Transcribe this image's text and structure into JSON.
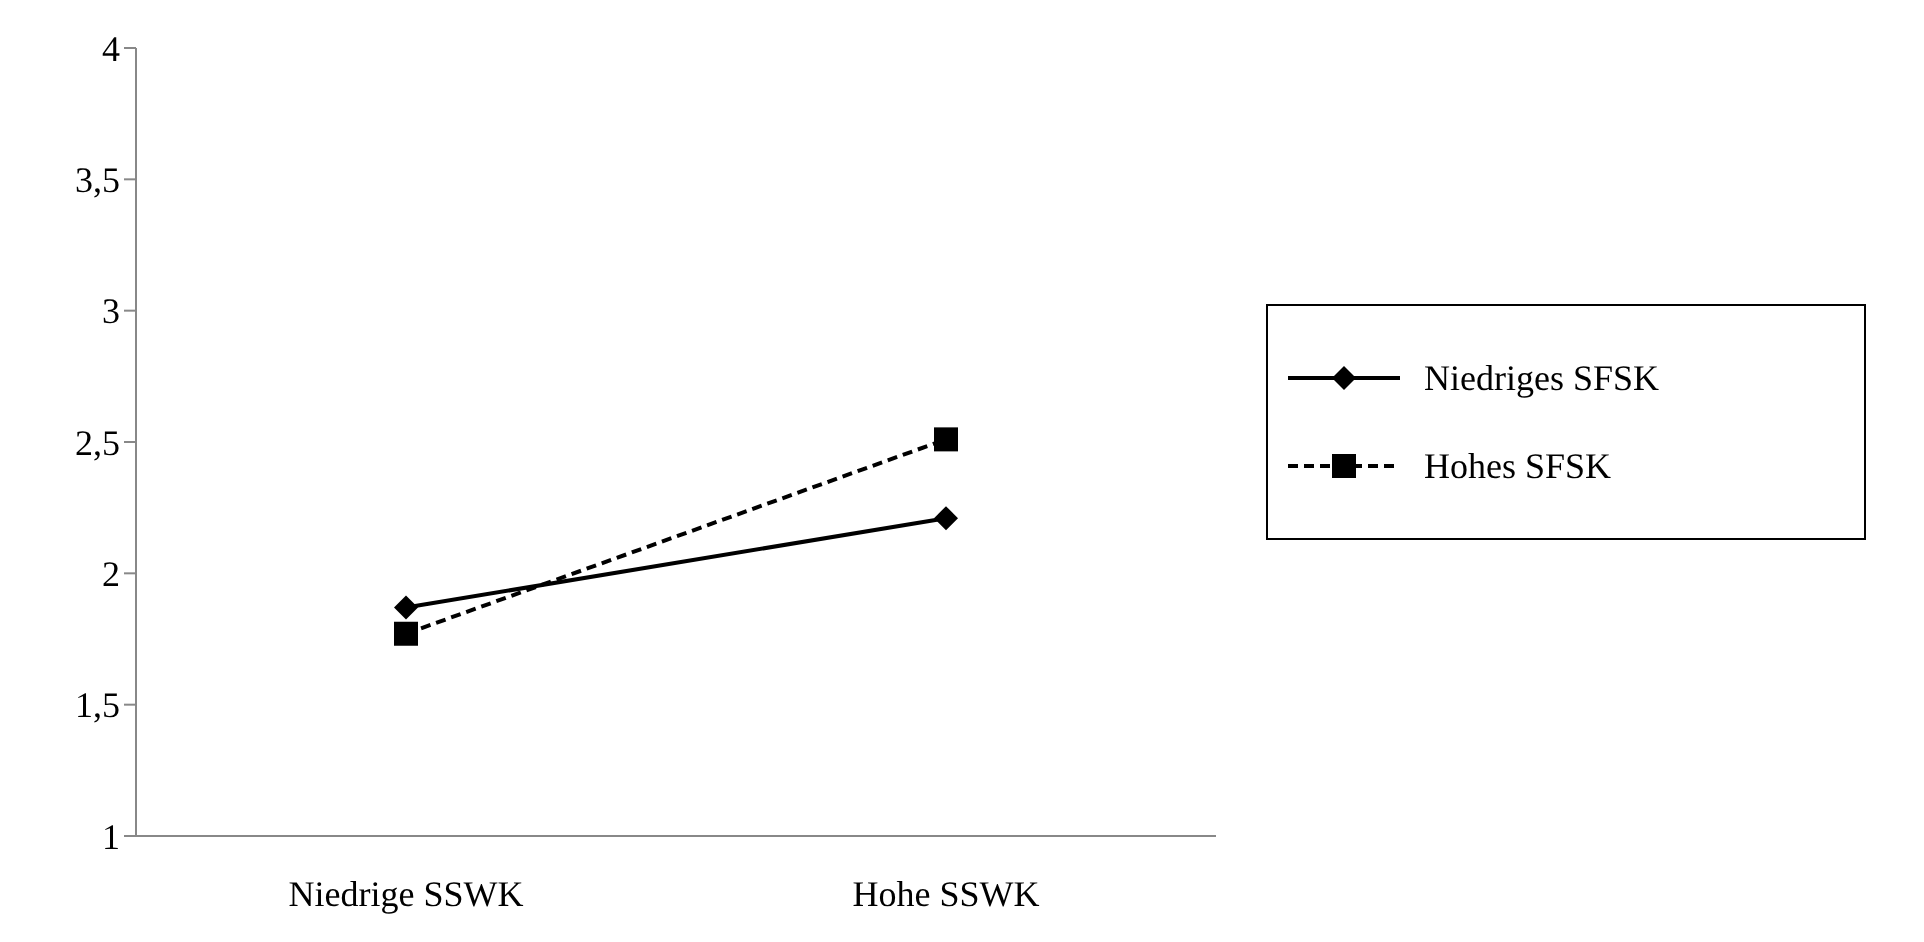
{
  "chart_data": {
    "type": "line",
    "categories": [
      "Niedrige SSWK",
      "Hohe SSWK"
    ],
    "series": [
      {
        "name": "Niedriges SFSK",
        "color": "#000000",
        "values": [
          1.87,
          2.21
        ],
        "marker": "diamond",
        "line_style": "solid"
      },
      {
        "name": "Hohes SFSK",
        "color": "#000000",
        "values": [
          1.77,
          2.51
        ],
        "marker": "square",
        "line_style": "dashed"
      }
    ],
    "ylim": [
      1,
      4
    ],
    "yticks": [
      1,
      {
        "value": 1.5,
        "label": "1,5"
      },
      2,
      {
        "value": 2.5,
        "label": "2,5"
      },
      3,
      {
        "value": 3.5,
        "label": "3,5"
      },
      4
    ],
    "grid": false,
    "legend": "right"
  }
}
